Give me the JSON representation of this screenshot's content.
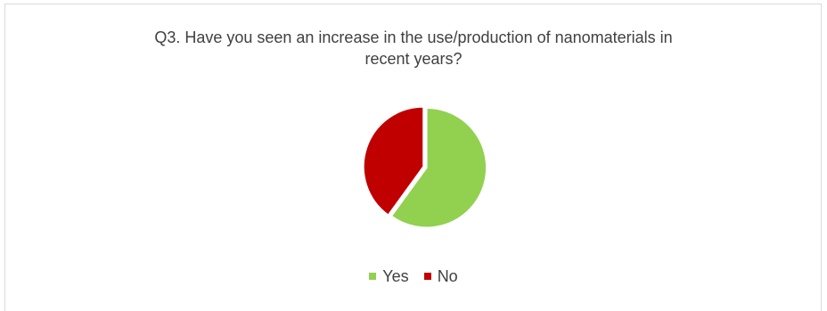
{
  "chart_data": {
    "type": "pie",
    "title": "Q3. Have you seen an increase in the use/production of nanomaterials in recent years?",
    "title_lines": [
      "Q3. Have you seen an increase in the use/production of nanomaterials in",
      "recent years?"
    ],
    "categories": [
      "Yes",
      "No"
    ],
    "values": [
      60,
      40
    ],
    "colors": [
      "#92d050",
      "#c00000"
    ],
    "legend_position": "bottom",
    "start_at": "top",
    "exploded_slice": "Yes"
  }
}
